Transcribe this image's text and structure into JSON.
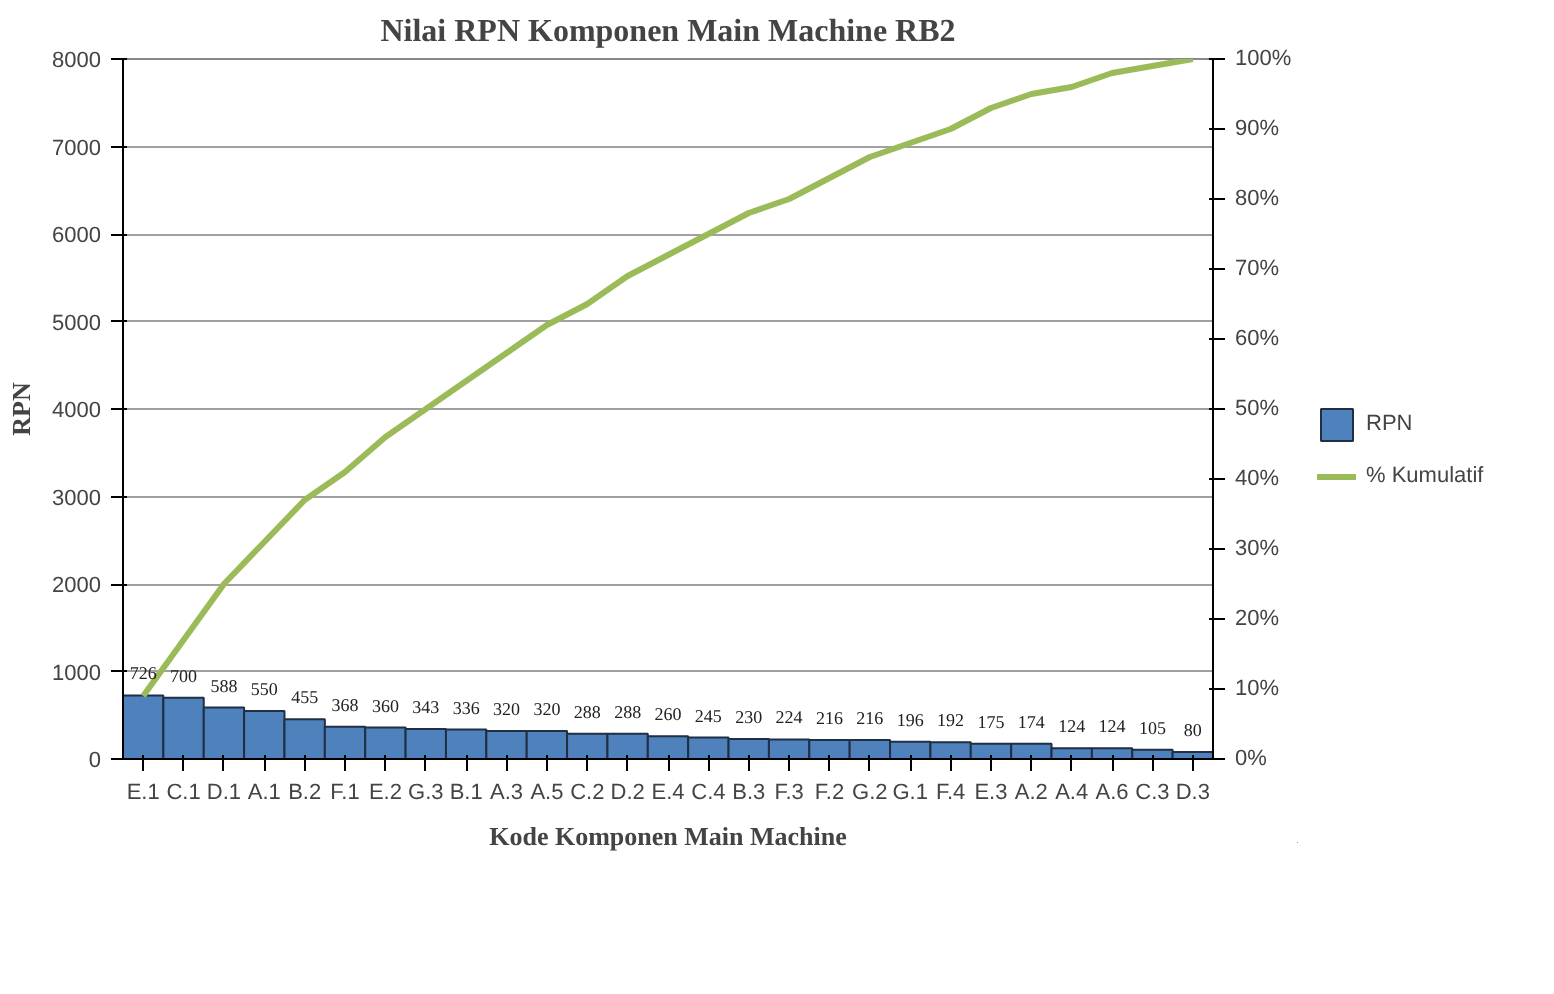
{
  "chart_data": {
    "type": "bar",
    "title": "Nilai RPN Komponen Main Machine RB2",
    "xlabel": "Kode Komponen Main Machine",
    "ylabel": "RPN",
    "categories": [
      "E.1",
      "C.1",
      "D.1",
      "A.1",
      "B.2",
      "F.1",
      "E.2",
      "G.3",
      "B.1",
      "A.3",
      "A.5",
      "C.2",
      "D.2",
      "E.4",
      "C.4",
      "B.3",
      "F.3",
      "F.2",
      "G.2",
      "G.1",
      "F.4",
      "E.3",
      "A.2",
      "A.4",
      "A.6",
      "C.3",
      "D.3"
    ],
    "series": [
      {
        "name": "RPN",
        "color": "#4f81bd",
        "data_labels": true,
        "values": [
          726,
          700,
          588,
          550,
          455,
          368,
          360,
          343,
          336,
          320,
          320,
          288,
          288,
          260,
          245,
          230,
          224,
          216,
          216,
          196,
          192,
          175,
          174,
          124,
          124,
          105,
          80
        ]
      },
      {
        "name": "% Kumulatif",
        "type": "line",
        "axis": "y2",
        "color": "#9bbb59",
        "marker": "none",
        "values": [
          9,
          17,
          25,
          31,
          37,
          41,
          46,
          50,
          54,
          58,
          62,
          65,
          69,
          72,
          75,
          78,
          80,
          83,
          86,
          88,
          90,
          93,
          95,
          96,
          98,
          99,
          100
        ]
      }
    ],
    "ylim": [
      0,
      8000
    ],
    "yticks": [
      0,
      1000,
      2000,
      3000,
      4000,
      5000,
      6000,
      7000,
      8000
    ],
    "y2lim": [
      0,
      100
    ],
    "y2ticks": [
      {
        "value": 0,
        "label": "0%"
      },
      {
        "value": 10,
        "label": "10%"
      },
      {
        "value": 20,
        "label": "20%"
      },
      {
        "value": 30,
        "label": "30%"
      },
      {
        "value": 40,
        "label": "40%"
      },
      {
        "value": 50,
        "label": "50%"
      },
      {
        "value": 60,
        "label": "60%"
      },
      {
        "value": 70,
        "label": "70%"
      },
      {
        "value": 80,
        "label": "80%"
      },
      {
        "value": 90,
        "label": "90%"
      },
      {
        "value": 100,
        "label": "100%"
      }
    ],
    "grid": "y",
    "legend": "right"
  }
}
